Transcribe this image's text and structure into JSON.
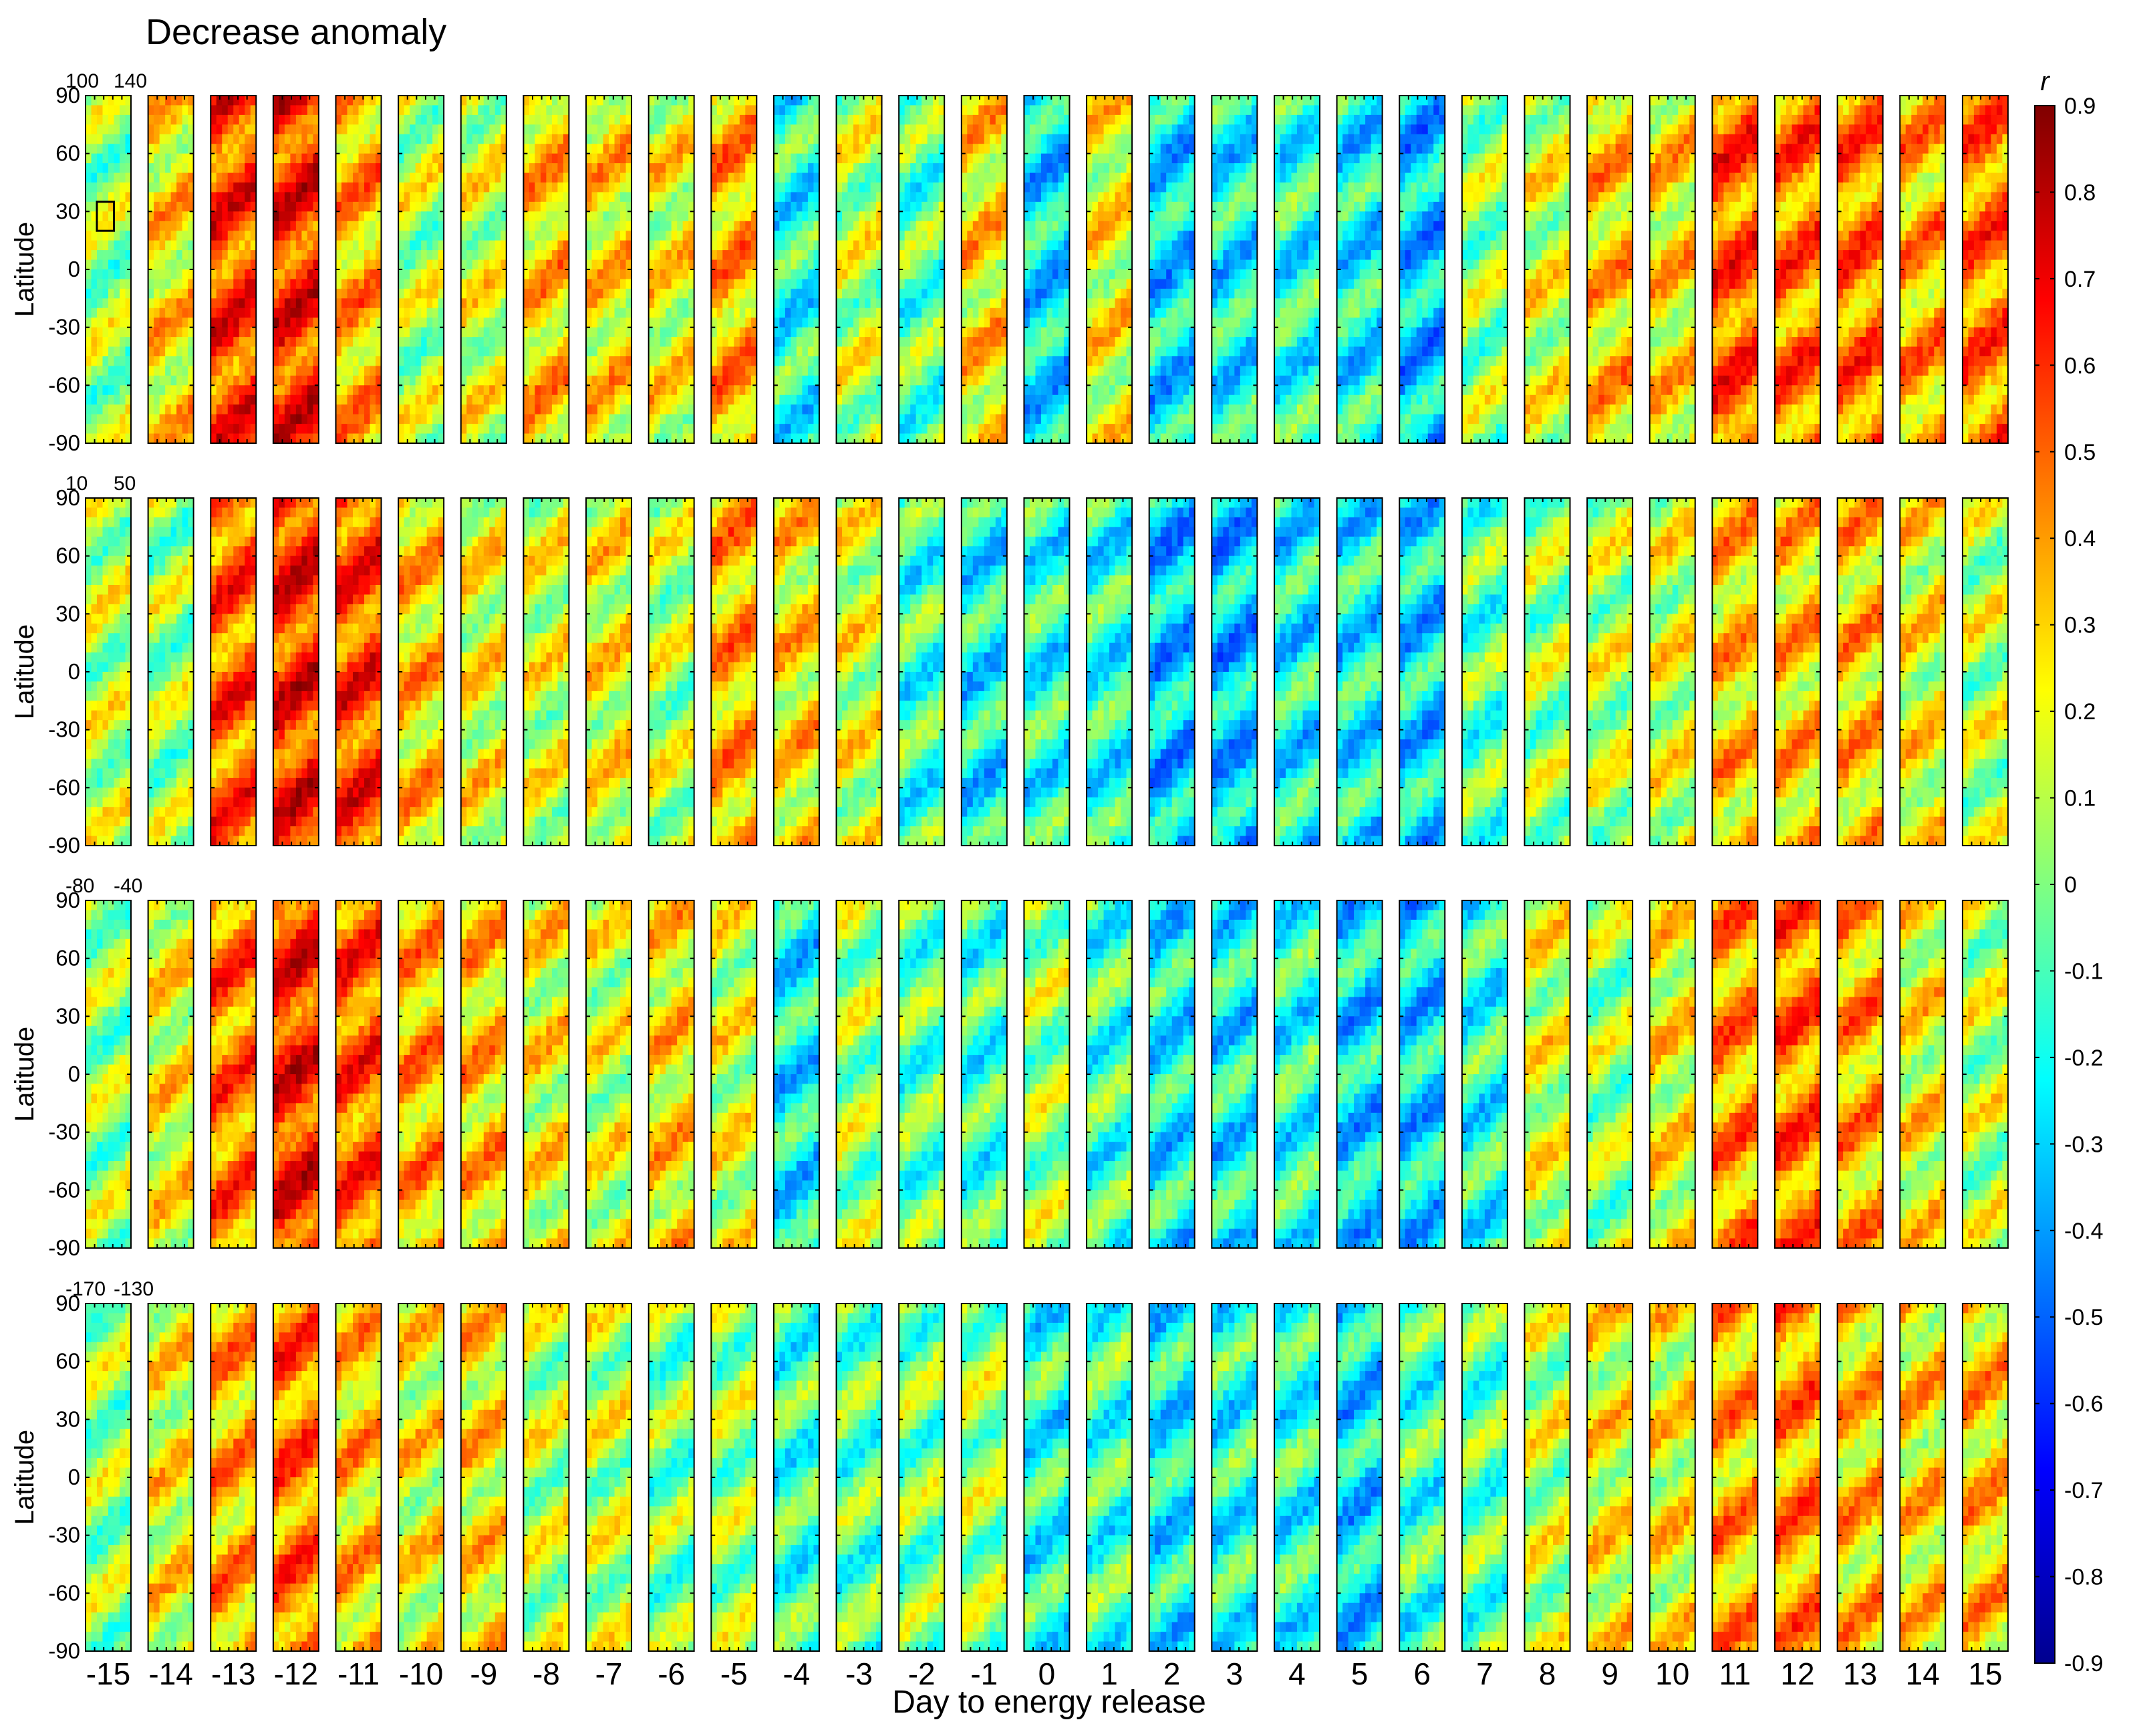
{
  "chart_data": {
    "type": "heatmap",
    "title": "Decrease anomaly",
    "xlabel": "Day to energy release",
    "ylabel": "Latitude",
    "days": [
      -15,
      -14,
      -13,
      -12,
      -11,
      -10,
      -9,
      -8,
      -7,
      -6,
      -5,
      -4,
      -3,
      -2,
      -1,
      0,
      1,
      2,
      3,
      4,
      5,
      6,
      7,
      8,
      9,
      10,
      11,
      12,
      13,
      14,
      15
    ],
    "day_labels": [
      "-15",
      "-14",
      "-13",
      "-12",
      "-11",
      "-10",
      "-9",
      "-8",
      "-7",
      "-6",
      "-5",
      "-4",
      "-3",
      "-2",
      "-1",
      "0",
      "1",
      "2",
      "3",
      "4",
      "5",
      "6",
      "7",
      "8",
      "9",
      "10",
      "11",
      "12",
      "13",
      "14",
      "15"
    ],
    "latitude_ticks": [
      90,
      60,
      30,
      0,
      -30,
      -60,
      -90
    ],
    "latitude_tick_labels": [
      "90",
      "60",
      "30",
      "0",
      "-30",
      "-60",
      "-90"
    ],
    "rows": [
      {
        "lon_labels": [
          "100",
          "140"
        ],
        "longitude_range": [
          100,
          140
        ],
        "day_mean_r": [
          0.05,
          0.25,
          0.55,
          0.6,
          0.35,
          0.1,
          0.15,
          0.3,
          0.25,
          0.2,
          0.35,
          -0.15,
          0.1,
          -0.05,
          0.25,
          -0.25,
          0.2,
          -0.25,
          -0.2,
          -0.15,
          -0.2,
          -0.3,
          0.05,
          0.15,
          0.3,
          0.25,
          0.5,
          0.45,
          0.45,
          0.35,
          0.45
        ]
      },
      {
        "lon_labels": [
          "10",
          "50"
        ],
        "longitude_range": [
          10,
          50
        ],
        "day_mean_r": [
          0.1,
          0.05,
          0.5,
          0.6,
          0.55,
          0.3,
          0.2,
          0.15,
          0.2,
          0.1,
          0.35,
          0.25,
          0.15,
          -0.1,
          -0.2,
          -0.15,
          -0.15,
          -0.3,
          -0.3,
          -0.2,
          -0.2,
          -0.25,
          -0.05,
          0.05,
          0.1,
          0.15,
          0.3,
          0.3,
          0.3,
          0.2,
          0.1
        ]
      },
      {
        "lon_labels": [
          "-80",
          "-40"
        ],
        "longitude_range": [
          -80,
          -40
        ],
        "day_mean_r": [
          0.05,
          0.2,
          0.45,
          0.6,
          0.5,
          0.35,
          0.3,
          0.2,
          0.15,
          0.25,
          0.15,
          -0.2,
          0.05,
          -0.05,
          -0.1,
          0.05,
          -0.1,
          -0.2,
          -0.2,
          -0.15,
          -0.25,
          -0.25,
          -0.15,
          0.15,
          0.05,
          0.2,
          0.4,
          0.45,
          0.35,
          0.2,
          0.1
        ]
      },
      {
        "lon_labels": [
          "-170",
          "-130"
        ],
        "longitude_range": [
          -170,
          -130
        ],
        "day_mean_r": [
          0.05,
          0.2,
          0.35,
          0.45,
          0.3,
          0.2,
          0.25,
          0.1,
          0.1,
          0.0,
          0.05,
          -0.1,
          -0.05,
          0.0,
          0.05,
          -0.15,
          -0.1,
          -0.2,
          -0.15,
          -0.15,
          -0.25,
          -0.1,
          -0.05,
          0.1,
          0.2,
          0.2,
          0.35,
          0.4,
          0.3,
          0.25,
          0.3
        ]
      }
    ],
    "colorbar": {
      "label": "r",
      "range": [
        -0.9,
        0.9
      ],
      "tick_values": [
        0.9,
        0.8,
        0.7,
        0.6,
        0.5,
        0.4,
        0.3,
        0.2,
        0.1,
        0,
        -0.1,
        -0.2,
        -0.3,
        -0.4,
        -0.5,
        -0.6,
        -0.7,
        -0.8,
        -0.9
      ],
      "tick_labels": [
        "0.9",
        "0.8",
        "0.7",
        "0.6",
        "0.5",
        "0.4",
        "0.3",
        "0.2",
        "0.1",
        "0",
        "-0.1",
        "-0.2",
        "-0.3",
        "-0.4",
        "-0.5",
        "-0.6",
        "-0.7",
        "-0.8",
        "-0.9"
      ],
      "colormap": "jet"
    },
    "epicenter_box": {
      "latitude": [
        20,
        35
      ],
      "longitude": [
        110,
        125
      ]
    }
  }
}
